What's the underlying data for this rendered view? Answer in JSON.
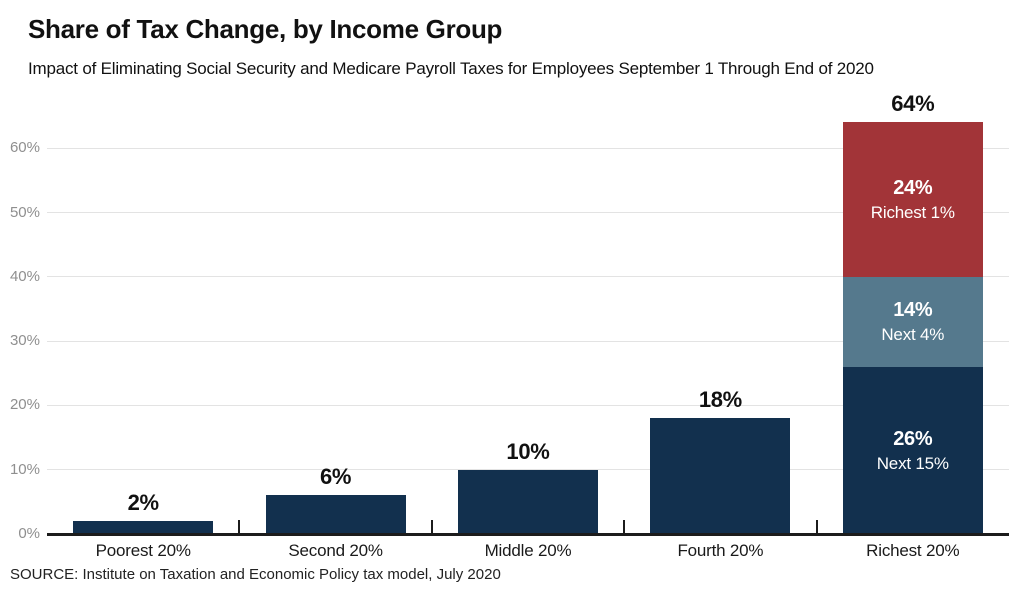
{
  "header": {
    "title": "Share of Tax Change, by Income Group",
    "subtitle": "Impact of Eliminating Social Security and Medicare Payroll Taxes for Employees September 1 Through End of 2020"
  },
  "footer": {
    "source": "SOURCE: Institute on Taxation and Economic Policy tax model, July 2020"
  },
  "colors": {
    "navy": "#12304E",
    "slate": "#55798D",
    "red": "#A23438",
    "grid_line": "#E3E3E3",
    "axis_line": "#1C1C1C",
    "y_tick_label": "#8F8F8F",
    "category_label": "#1A1A1A",
    "value_label": "#111111",
    "bar_inner_text": "#FFFFFF",
    "background": "#FFFFFF"
  },
  "chart_data": {
    "type": "bar",
    "stacked": true,
    "title": "Share of Tax Change, by Income Group",
    "subtitle": "Impact of Eliminating Social Security and Medicare Payroll Taxes for Employees September 1 Through End of 2020",
    "categories": [
      "Poorest 20%",
      "Second 20%",
      "Middle 20%",
      "Fourth 20%",
      "Richest 20%"
    ],
    "series": [
      {
        "name": "Next 15%",
        "color": "#12304E",
        "values": [
          2,
          6,
          10,
          18,
          26
        ]
      },
      {
        "name": "Next 4%",
        "color": "#55798D",
        "values": [
          0,
          0,
          0,
          0,
          14
        ]
      },
      {
        "name": "Richest 1%",
        "color": "#A23438",
        "values": [
          0,
          0,
          0,
          0,
          24
        ]
      }
    ],
    "totals": [
      2,
      6,
      10,
      18,
      64
    ],
    "total_labels": [
      "2%",
      "6%",
      "10%",
      "18%",
      "64%"
    ],
    "in_bar_segment_labels": [
      {
        "category": "Richest 20%",
        "series": "Next 15%",
        "value_label": "26%",
        "name_label": "Next 15%"
      },
      {
        "category": "Richest 20%",
        "series": "Next 4%",
        "value_label": "14%",
        "name_label": "Next 4%"
      },
      {
        "category": "Richest 20%",
        "series": "Richest 1%",
        "value_label": "24%",
        "name_label": "Richest 1%"
      }
    ],
    "xlabel": "",
    "ylabel": "",
    "ylim": [
      0,
      64
    ],
    "y_ticks": {
      "values": [
        0,
        10,
        20,
        30,
        40,
        50,
        60
      ],
      "labels": [
        "0%",
        "10%",
        "20%",
        "30%",
        "40%",
        "50%",
        "60%"
      ]
    },
    "grid": "horizontal-light",
    "legend": "none",
    "source": "SOURCE: Institute on Taxation and Economic Policy tax model, July 2020"
  }
}
